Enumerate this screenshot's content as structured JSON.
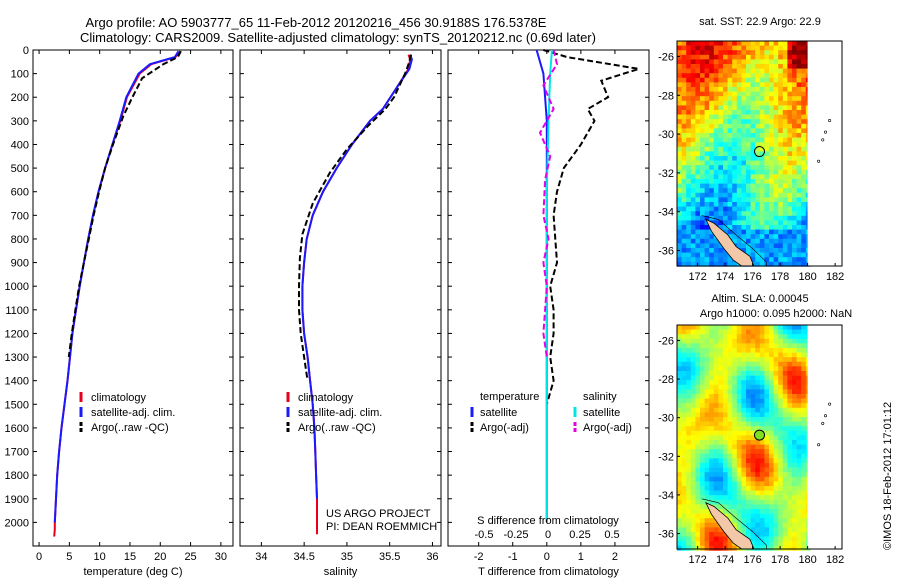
{
  "header": {
    "line1": "Argo profile: AO 5903777_65 11-Feb-2012 20120216_456 30.9188S 176.5378E",
    "line2": "Climatology: CARS2009. Satellite-adjusted climatology: synTS_20120212.nc (0.69d later)"
  },
  "colors": {
    "climatology": "#e8001c",
    "satellite": "#1a1aff",
    "argo": "#000000",
    "satellite_s": "#00e5e5",
    "argo_s": "#e600e6"
  },
  "credits": {
    "line1": "US ARGO PROJECT",
    "line2": "PI: DEAN ROEMMICH"
  },
  "stamp": "©IMOS 18-Feb-2012 17:01:12",
  "chart_data": [
    {
      "type": "line",
      "xlabel": "temperature (deg C)",
      "xlim": [
        -1,
        32
      ],
      "ylim": [
        0,
        2100
      ],
      "xticks": [
        0,
        5,
        10,
        15,
        20,
        25,
        30
      ],
      "yticks": [
        0,
        100,
        200,
        300,
        400,
        500,
        600,
        700,
        800,
        900,
        1000,
        1100,
        1200,
        1300,
        1400,
        1500,
        1600,
        1700,
        1800,
        1900,
        2000
      ],
      "legend": [
        "climatology",
        "satellite-adj. clim.",
        "Argo(..raw -QC)"
      ],
      "series": [
        {
          "name": "climatology",
          "style": "solid",
          "color_key": "climatology",
          "x": [
            23.3,
            22.5,
            18.5,
            16.6,
            14.5,
            13.4,
            12.1,
            10.9,
            9.8,
            8.9,
            8.1,
            7.4,
            6.7,
            6.1,
            5.5,
            5.1,
            4.7,
            4.2,
            3.7,
            3.3,
            3.0,
            2.8,
            2.6,
            2.6,
            2.5
          ],
          "y": [
            5,
            30,
            60,
            100,
            200,
            300,
            400,
            500,
            600,
            700,
            800,
            900,
            1000,
            1100,
            1200,
            1300,
            1400,
            1500,
            1600,
            1700,
            1800,
            1900,
            2000,
            2030,
            2060
          ]
        },
        {
          "name": "satellite-adj. clim.",
          "style": "solid",
          "color_key": "satellite",
          "x": [
            23.0,
            22.4,
            18.3,
            16.4,
            14.4,
            13.3,
            12.1,
            10.9,
            9.8,
            8.9,
            8.1,
            7.4,
            6.7,
            6.1,
            5.5,
            5.1,
            4.7,
            4.2,
            3.7,
            3.3,
            3.0,
            2.8,
            2.6
          ],
          "y": [
            5,
            30,
            60,
            100,
            200,
            300,
            400,
            500,
            600,
            700,
            800,
            900,
            1000,
            1100,
            1200,
            1300,
            1400,
            1500,
            1600,
            1700,
            1800,
            1900,
            2000
          ]
        },
        {
          "name": "Argo(..raw -QC)",
          "style": "dashed",
          "color_key": "argo",
          "x": [
            23.4,
            22.9,
            20.5,
            17.0,
            15.4,
            13.9,
            12.2,
            10.9,
            9.9,
            9.0,
            8.2,
            7.4,
            6.6,
            6.0,
            5.4,
            4.9
          ],
          "y": [
            5,
            30,
            60,
            120,
            200,
            280,
            400,
            500,
            600,
            700,
            800,
            900,
            1000,
            1100,
            1200,
            1300
          ]
        }
      ]
    },
    {
      "type": "line",
      "xlabel": "salinity",
      "xlim": [
        33.75,
        36.1
      ],
      "ylim": [
        0,
        2100
      ],
      "xticks": [
        34,
        34.5,
        35,
        35.5,
        36
      ],
      "legend": [
        "climatology",
        "satellite-adj. clim.",
        "Argo(..raw -QC)"
      ],
      "series": [
        {
          "name": "climatology",
          "style": "solid",
          "color_key": "climatology",
          "x": [
            35.72,
            35.74,
            35.72,
            35.6,
            35.42,
            35.27,
            35.06,
            34.88,
            34.72,
            34.6,
            34.53,
            34.5,
            34.48,
            34.48,
            34.5,
            34.54,
            34.57,
            34.6,
            34.62,
            34.63,
            34.64,
            34.65,
            34.65
          ],
          "y": [
            20,
            40,
            80,
            150,
            250,
            300,
            400,
            500,
            600,
            700,
            800,
            900,
            1000,
            1100,
            1200,
            1300,
            1400,
            1500,
            1600,
            1700,
            1800,
            1900,
            2050
          ]
        },
        {
          "name": "satellite-adj. clim.",
          "style": "solid",
          "color_key": "satellite",
          "x": [
            35.74,
            35.76,
            35.73,
            35.6,
            35.42,
            35.27,
            35.06,
            34.88,
            34.72,
            34.6,
            34.53,
            34.5,
            34.48,
            34.48,
            34.5,
            34.54,
            34.57,
            34.6,
            34.62,
            34.63,
            34.64,
            34.65
          ],
          "y": [
            20,
            40,
            80,
            150,
            250,
            300,
            400,
            500,
            600,
            700,
            800,
            900,
            1000,
            1100,
            1200,
            1300,
            1400,
            1500,
            1600,
            1700,
            1800,
            1900
          ]
        },
        {
          "name": "Argo(..raw -QC)",
          "style": "dashed",
          "color_key": "argo",
          "x": [
            35.75,
            35.72,
            35.68,
            35.55,
            35.45,
            35.25,
            35.0,
            34.8,
            34.6,
            34.48,
            34.45,
            34.44,
            34.44,
            34.46,
            34.5,
            34.54
          ],
          "y": [
            20,
            60,
            100,
            200,
            250,
            320,
            420,
            520,
            650,
            780,
            880,
            1000,
            1100,
            1200,
            1300,
            1400
          ]
        }
      ]
    },
    {
      "type": "line",
      "xlabel": "T difference from climatology",
      "xlabel2": "S difference from climatology",
      "xlim": [
        -2.9,
        3.0
      ],
      "ylim": [
        0,
        2100
      ],
      "xticks": [
        -2,
        -1,
        0,
        1,
        2
      ],
      "xticks_S": [
        "-0.5",
        "-0.25",
        "0",
        "0.25",
        "0.5"
      ],
      "legend_titles": [
        "temperature",
        "salinity"
      ],
      "legend": [
        "satellite",
        "Argo(-adj)",
        "satellite",
        "Argo(-adj)"
      ],
      "series": [
        {
          "name": "T satellite",
          "style": "solid",
          "color_key": "satellite",
          "x": [
            -0.3,
            -0.1,
            0,
            0,
            0,
            0,
            0
          ],
          "y": [
            0,
            100,
            300,
            600,
            1000,
            1500,
            2000
          ]
        },
        {
          "name": "T Argo(-adj)",
          "style": "dashed",
          "color_key": "argo",
          "x": [
            -0.1,
            0.6,
            2.7,
            1.6,
            1.8,
            1.2,
            1.4,
            1.0,
            0.5,
            0.3,
            0.2,
            0.25,
            0.3,
            0.1,
            0.2,
            0.2,
            0.1,
            0.2,
            0.0
          ],
          "y": [
            0,
            30,
            80,
            130,
            200,
            250,
            300,
            400,
            500,
            600,
            700,
            800,
            900,
            1000,
            1100,
            1200,
            1300,
            1400,
            1500
          ]
        },
        {
          "name": "S satellite",
          "style": "solid",
          "color_key": "satellite_s",
          "x": [
            0.15,
            0.1,
            0.05,
            0.0,
            0.0,
            0.0
          ],
          "y": [
            0,
            100,
            300,
            600,
            1000,
            2000
          ]
        },
        {
          "name": "S Argo(-adj)",
          "style": "dashed",
          "color_key": "argo_s",
          "x": [
            0.2,
            0.3,
            -0.1,
            0.2,
            -0.2,
            0.1,
            -0.05,
            -0.1,
            0.05,
            -0.1,
            0.0,
            -0.05,
            -0.1,
            0.0
          ],
          "y": [
            0,
            60,
            150,
            250,
            350,
            450,
            550,
            700,
            800,
            900,
            1000,
            1100,
            1200,
            1300
          ]
        }
      ]
    },
    {
      "type": "heatmap",
      "title": "sat. SST: 22.9 Argo: 22.9",
      "xlim": [
        170.5,
        182.5
      ],
      "ylim": [
        -36.8,
        -25.2
      ],
      "xticks": [
        172,
        174,
        176,
        178,
        180,
        182
      ],
      "yticks": [
        -26,
        -28,
        -30,
        -32,
        -34,
        -36
      ],
      "marker": {
        "lon": 176.5,
        "lat": -30.9
      }
    },
    {
      "type": "heatmap",
      "title": "Altim. SLA: 0.00045",
      "subtitle": "Argo h1000: 0.095 h2000: NaN",
      "xlim": [
        170.5,
        182.5
      ],
      "ylim": [
        -36.8,
        -25.2
      ],
      "xticks": [
        172,
        174,
        176,
        178,
        180,
        182
      ],
      "yticks": [
        -26,
        -28,
        -30,
        -32,
        -34,
        -36
      ],
      "marker": {
        "lon": 176.5,
        "lat": -30.9
      }
    }
  ]
}
